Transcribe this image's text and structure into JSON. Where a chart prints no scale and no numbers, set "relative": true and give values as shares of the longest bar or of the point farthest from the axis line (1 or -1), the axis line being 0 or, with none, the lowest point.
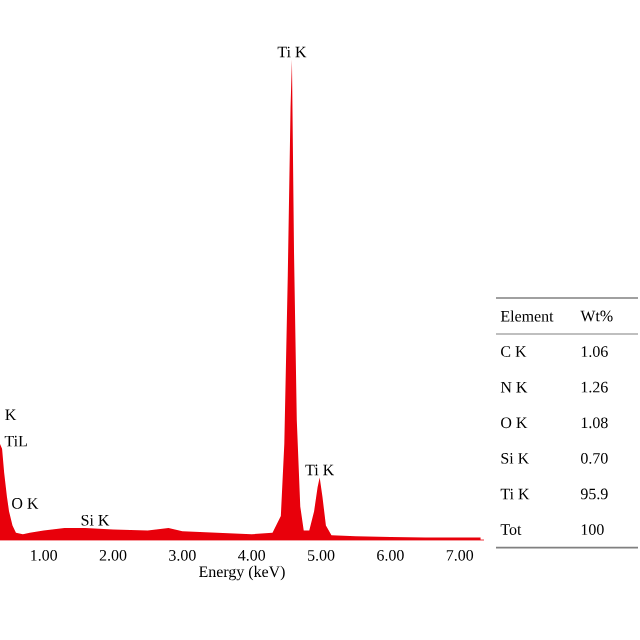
{
  "chart_data": {
    "type": "area",
    "relative": true,
    "xlabel": "Energy (keV)",
    "color": "#e8000b",
    "x": [
      0.37,
      0.4,
      0.43,
      0.47,
      0.5,
      0.55,
      0.6,
      0.7,
      0.8,
      1.0,
      1.3,
      1.6,
      2.0,
      2.5,
      2.8,
      3.0,
      3.5,
      4.0,
      4.3,
      4.42,
      4.47,
      4.52,
      4.56,
      4.58,
      4.61,
      4.65,
      4.7,
      4.75,
      4.83,
      4.9,
      4.95,
      4.98,
      5.02,
      5.07,
      5.15,
      5.5,
      6.0,
      6.5,
      7.0,
      7.3
    ],
    "values": [
      0.2,
      0.19,
      0.14,
      0.09,
      0.06,
      0.03,
      0.015,
      0.012,
      0.015,
      0.02,
      0.025,
      0.025,
      0.022,
      0.02,
      0.025,
      0.018,
      0.015,
      0.012,
      0.015,
      0.05,
      0.2,
      0.55,
      0.9,
      1.0,
      0.6,
      0.25,
      0.07,
      0.02,
      0.02,
      0.06,
      0.11,
      0.13,
      0.09,
      0.03,
      0.01,
      0.008,
      0.006,
      0.005,
      0.005,
      0.005
    ],
    "xlim": [
      0.37,
      7.35
    ],
    "xticks": [
      {
        "value": 1,
        "label": "1.00"
      },
      {
        "value": 2,
        "label": "2.00"
      },
      {
        "value": 3,
        "label": "3.00"
      },
      {
        "value": 4,
        "label": "4.00"
      },
      {
        "value": 5,
        "label": "5.00"
      },
      {
        "value": 6,
        "label": "6.00"
      },
      {
        "value": 7,
        "label": "7.00"
      }
    ],
    "annotations": [
      {
        "text": "Ti K",
        "x": 4.58,
        "y": 1.0
      },
      {
        "text": "Ti K",
        "x": 4.98,
        "y": 0.13
      },
      {
        "text": "Si K",
        "x": 1.74,
        "y": 0.025
      },
      {
        "text": "O K",
        "x": 0.5,
        "y": 0.06
      },
      {
        "text": "TiL",
        "x": 0.4,
        "y": 0.19
      },
      "K",
      "Element",
      "Wt%",
      "C K",
      "1.06",
      "N K",
      "1.26",
      "O K",
      "1.08",
      "Si K",
      "0.70",
      "Ti K",
      "95.9",
      "Tot",
      "100"
    ]
  }
}
